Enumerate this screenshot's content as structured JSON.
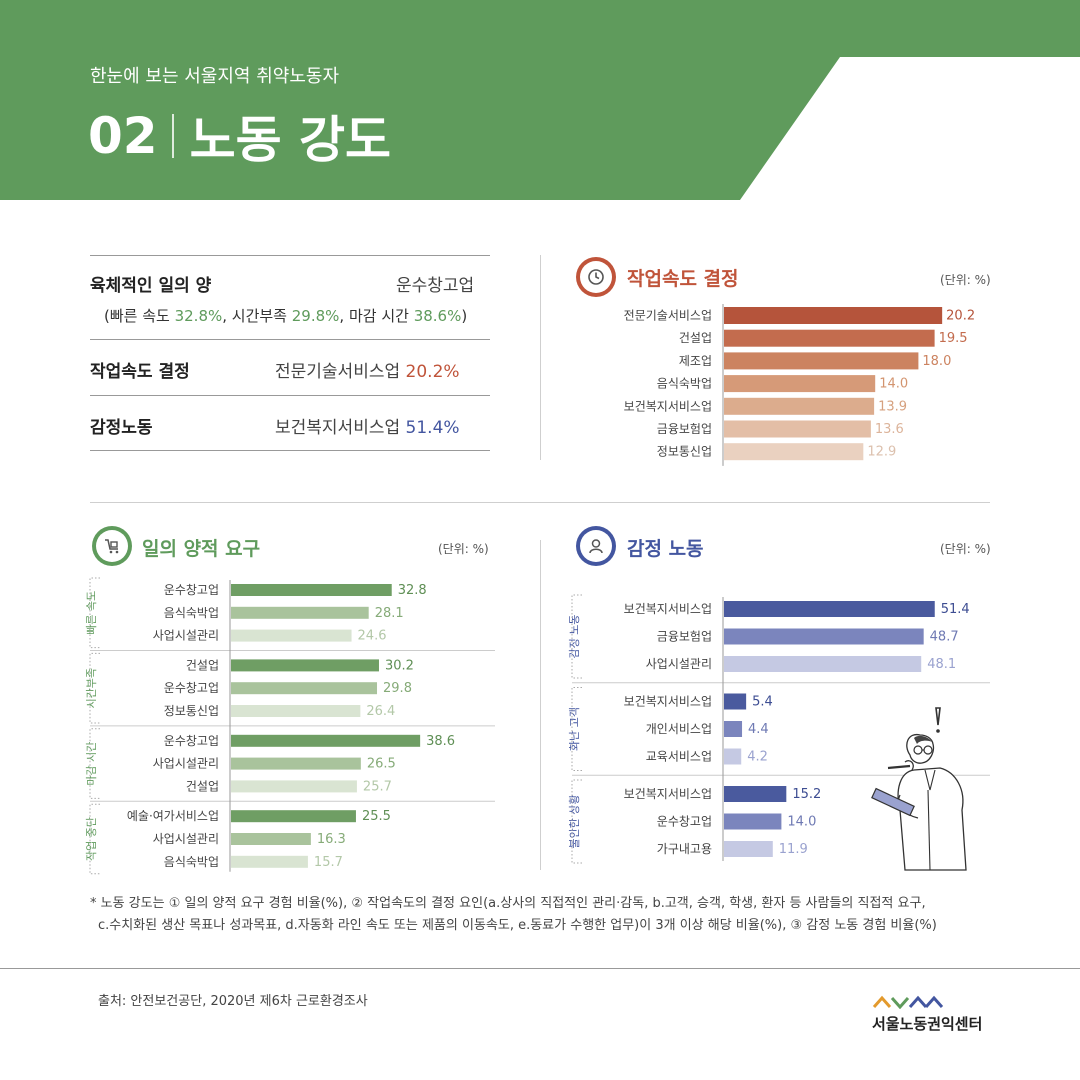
{
  "header": {
    "subtitle": "한눈에 보는 서울지역 취약노동자",
    "number": "02",
    "title": "노동 강도",
    "color": "#5f9b5c"
  },
  "summary": {
    "row1": {
      "label": "육체적인 일의 양",
      "value": "운수창고업",
      "note_prefix": "(빠른 속도 ",
      "note_v1": "32.8%",
      "note_mid1": ", 시간부족 ",
      "note_v2": "29.8%",
      "note_mid2": ", 마감 시간 ",
      "note_v3": "38.6%",
      "note_suffix": ")"
    },
    "row2": {
      "label": "작업속도 결정",
      "value": "전문기술서비스업 ",
      "value_hl": "20.2%"
    },
    "row3": {
      "label": "감정노동",
      "value": "보건복지서비스업 ",
      "value_hl": "51.4%"
    }
  },
  "sections": {
    "speed": {
      "title": "작업속도 결정",
      "unit": "(단위: %)",
      "icon": "clock-icon",
      "color": "#c0543a"
    },
    "workload": {
      "title": "일의 양적 요구",
      "unit": "(단위: %)",
      "icon": "cart-icon",
      "color": "#5f9b5c"
    },
    "emotion": {
      "title": "감정 노동",
      "unit": "(단위: %)",
      "icon": "person-icon",
      "color": "#4356a0"
    }
  },
  "chart_data": [
    {
      "type": "bar",
      "orientation": "horizontal",
      "title": "작업속도 결정",
      "unit": "(단위: %)",
      "categories": [
        "전문기술서비스업",
        "건설업",
        "제조업",
        "음식숙박업",
        "보건복지서비스업",
        "금융보험업",
        "정보통신업"
      ],
      "values": [
        20.2,
        19.5,
        18.0,
        14.0,
        13.9,
        13.6,
        12.9
      ],
      "labels": [
        "20.2",
        "19.5",
        "18.0",
        "14.0",
        "13.9",
        "13.6",
        "12.9"
      ],
      "colors": [
        "#b5543b",
        "#c36c4e",
        "#cc8360",
        "#d69a78",
        "#dcac8d",
        "#e3bea6",
        "#ead1c0"
      ],
      "label_colors": [
        "#b5543b",
        "#c36c4e",
        "#cc8360",
        "#d3946f",
        "#d6a17f",
        "#dcb49b",
        "#dcc0ad"
      ]
    },
    {
      "type": "bar",
      "orientation": "horizontal",
      "title": "일의 양적 요구",
      "unit": "(단위: %)",
      "groups": [
        {
          "name": "빠른 속도",
          "categories": [
            "운수창고업",
            "음식숙박업",
            "사업시설관리"
          ],
          "values": [
            32.8,
            28.1,
            24.6
          ],
          "labels": [
            "32.8",
            "28.1",
            "24.6"
          ]
        },
        {
          "name": "시간부족",
          "categories": [
            "건설업",
            "운수창고업",
            "정보통신업"
          ],
          "values": [
            30.2,
            29.8,
            26.4
          ],
          "labels": [
            "30.2",
            "29.8",
            "26.4"
          ]
        },
        {
          "name": "마감 시간",
          "categories": [
            "운수창고업",
            "사업시설관리",
            "건설업"
          ],
          "values": [
            38.6,
            26.5,
            25.7
          ],
          "labels": [
            "38.6",
            "26.5",
            "25.7"
          ]
        },
        {
          "name": "작업 중단",
          "categories": [
            "예술·여가서비스업",
            "사업시설관리",
            "음식숙박업"
          ],
          "values": [
            25.5,
            16.3,
            15.7
          ],
          "labels": [
            "25.5",
            "16.3",
            "15.7"
          ]
        }
      ],
      "colors": [
        "#6f9e64",
        "#a9c39c",
        "#d9e4d2"
      ],
      "label_colors": [
        "#5f8f55",
        "#86ab78",
        "#b3c8a8"
      ]
    },
    {
      "type": "bar",
      "orientation": "horizontal",
      "title": "감정 노동",
      "unit": "(단위: %)",
      "groups": [
        {
          "name": "감정 노동",
          "categories": [
            "보건복지서비스업",
            "금융보험업",
            "사업시설관리"
          ],
          "values": [
            51.4,
            48.7,
            48.1
          ],
          "labels": [
            "51.4",
            "48.7",
            "48.1"
          ]
        },
        {
          "name": "화난 고객",
          "categories": [
            "보건복지서비스업",
            "개인서비스업",
            "교육서비스업"
          ],
          "values": [
            5.4,
            4.4,
            4.2
          ],
          "labels": [
            "5.4",
            "4.4",
            "4.2"
          ]
        },
        {
          "name": "불안한 상황",
          "categories": [
            "보건복지서비스업",
            "운수창고업",
            "가구내고용"
          ],
          "values": [
            15.2,
            14.0,
            11.9
          ],
          "labels": [
            "15.2",
            "14.0",
            "11.9"
          ]
        }
      ],
      "colors": [
        "#4a5a9e",
        "#7b85bd",
        "#c5c9e3"
      ],
      "label_colors": [
        "#3d4d92",
        "#6e79b3",
        "#9aa2cf"
      ]
    }
  ],
  "footnote": {
    "line1": "* 노동 강도는 ① 일의 양적 요구 경험 비율(%), ② 작업속도의 결정 요인(a.상사의 직접적인 관리·감독, b.고객, 승객, 학생, 환자 등 사람들의 직접적 요구,",
    "line2": "c.수치화된 생산 목표나 성과목표, d.자동화 라인 속도 또는 제품의 이동속도, e.동료가 수행한 업무)이 3개 이상 해당 비율(%), ③ 감정 노동 경험 비율(%)"
  },
  "source": "출처: 안전보건공단, 2020년 제6차 근로환경조사",
  "logo": {
    "text": "서울노동권익센터",
    "mark_colors": [
      "#e39a2d",
      "#5f9b5c",
      "#4356a0",
      "#4356a0"
    ]
  }
}
